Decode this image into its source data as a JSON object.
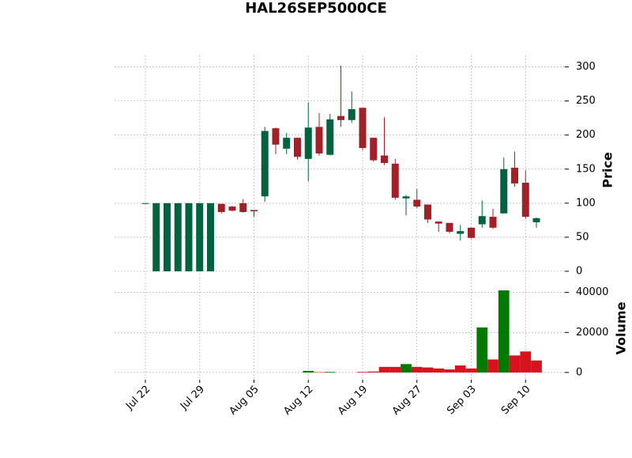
{
  "chart_data": {
    "type": "candlestick",
    "title": "HAL26SEP5000CE",
    "categories": [
      "Jul 22",
      null,
      null,
      null,
      null,
      "Jul 29",
      null,
      null,
      null,
      null,
      "Aug 05",
      null,
      null,
      null,
      null,
      "Aug 12",
      null,
      null,
      null,
      null,
      "Aug 19",
      null,
      null,
      null,
      null,
      "Aug 27",
      null,
      null,
      null,
      null,
      "Sep 03",
      null,
      null,
      null,
      null,
      "Sep 10",
      null
    ],
    "open": [
      100,
      0,
      0,
      0,
      0,
      0,
      0,
      99,
      95,
      100,
      90,
      110,
      210,
      180,
      196,
      165,
      212,
      171,
      228,
      222,
      240,
      196,
      170,
      158,
      107,
      105,
      98,
      73,
      71,
      55,
      64,
      69,
      80,
      85,
      152,
      130,
      72
    ],
    "high": [
      100,
      100,
      100,
      100,
      100,
      100,
      100,
      99,
      96,
      106,
      90,
      212,
      211,
      203,
      196,
      248,
      232,
      231,
      302,
      264,
      240,
      196,
      226,
      165,
      112,
      121,
      98,
      73,
      71,
      68,
      64,
      104,
      92,
      167,
      176,
      148,
      79
    ],
    "low": [
      100,
      0,
      0,
      0,
      0,
      0,
      0,
      85,
      88,
      86,
      80,
      102,
      172,
      172,
      164,
      132,
      170,
      170,
      212,
      218,
      178,
      161,
      156,
      105,
      82,
      93,
      71,
      58,
      56,
      45,
      48,
      64,
      62,
      85,
      124,
      77,
      64
    ],
    "close": [
      100,
      100,
      100,
      100,
      100,
      100,
      100,
      87,
      89,
      87,
      88,
      206,
      186,
      196,
      168,
      211,
      173,
      223,
      222,
      238,
      181,
      163,
      159,
      108,
      110,
      95,
      76,
      70,
      58,
      59,
      49,
      81,
      64,
      150,
      129,
      80,
      78
    ],
    "up_color": "#006340",
    "down_color": "#a02128",
    "volume": [
      0,
      0,
      0,
      0,
      0,
      0,
      0,
      0,
      0,
      0,
      0,
      0,
      0,
      0,
      0,
      800,
      200,
      300,
      0,
      0,
      300,
      500,
      2800,
      2800,
      4200,
      2800,
      2500,
      2000,
      1500,
      3500,
      2000,
      22500,
      6500,
      41000,
      8500,
      10500,
      6000
    ],
    "volume_colors": [
      "#d7131e",
      "#007a00",
      "#007a00",
      "#007a00",
      "#007a00",
      "#007a00",
      "#007a00",
      "#d7131e",
      "#d7131e",
      "#d7131e",
      "#d7131e",
      "#007a00",
      "#d7131e",
      "#007a00",
      "#d7131e",
      "#007a00",
      "#d7131e",
      "#007a00",
      "#007a00",
      "#007a00",
      "#d7131e",
      "#d7131e",
      "#d7131e",
      "#d7131e",
      "#007a00",
      "#d7131e",
      "#d7131e",
      "#d7131e",
      "#d7131e",
      "#d7131e",
      "#d7131e",
      "#007a00",
      "#d7131e",
      "#007a00",
      "#d7131e",
      "#d7131e",
      "#d7131e"
    ],
    "ylabel": "Price",
    "ylim": [
      -14,
      317
    ],
    "yticks": [
      0,
      50,
      100,
      150,
      200,
      250,
      300
    ],
    "volume_ylabel": "Volume",
    "volume_ylim": [
      -3600,
      45000
    ],
    "volume_yticks": [
      0,
      20000,
      40000
    ],
    "grid": true
  }
}
